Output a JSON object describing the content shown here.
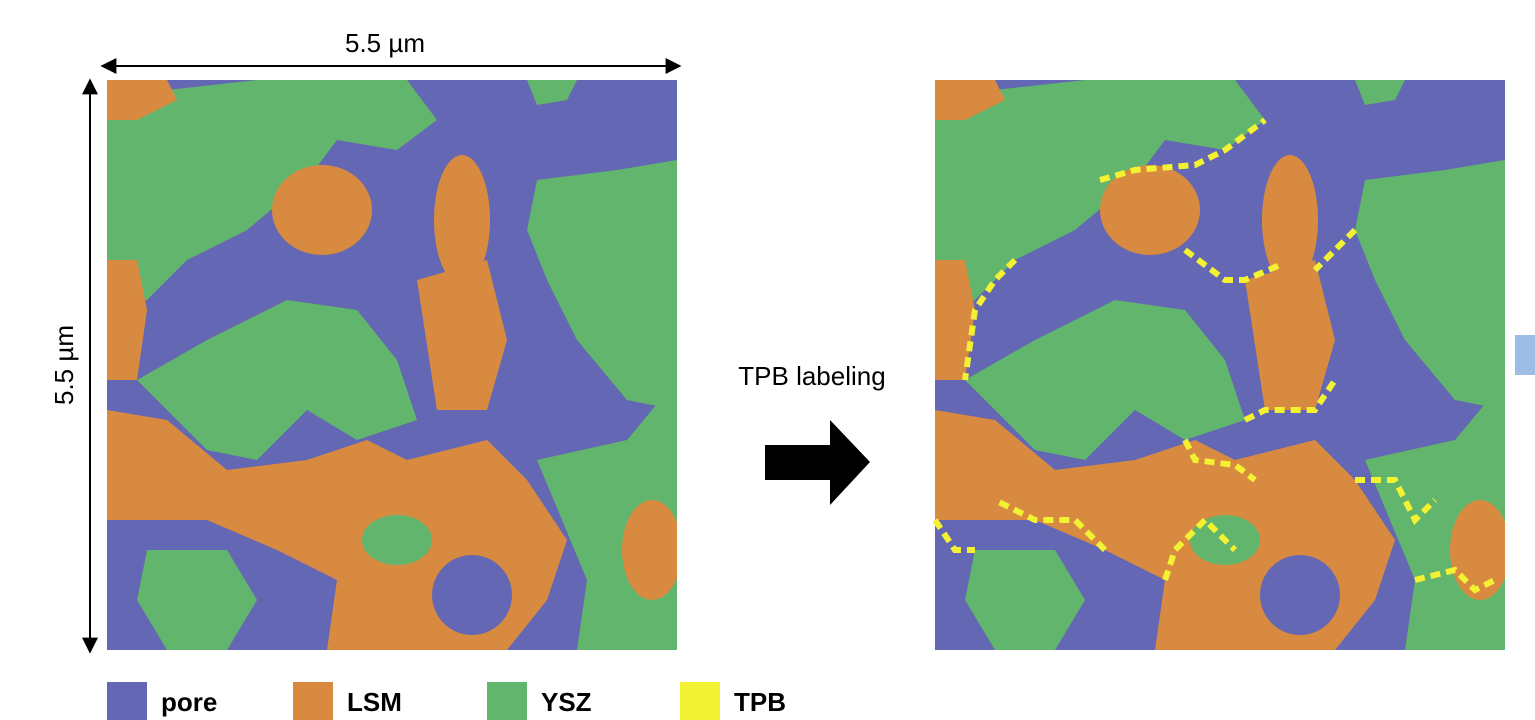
{
  "scale": {
    "width_label": "5.5 µm",
    "height_label": "5.5 µm"
  },
  "arrow_label": "TPB labeling",
  "legend": [
    {
      "label": "pore",
      "color": "#6467b3"
    },
    {
      "label": "LSM",
      "color": "#d88b40"
    },
    {
      "label": "YSZ",
      "color": "#62b56c"
    },
    {
      "label": "TPB",
      "color": "#f2f232"
    }
  ]
}
